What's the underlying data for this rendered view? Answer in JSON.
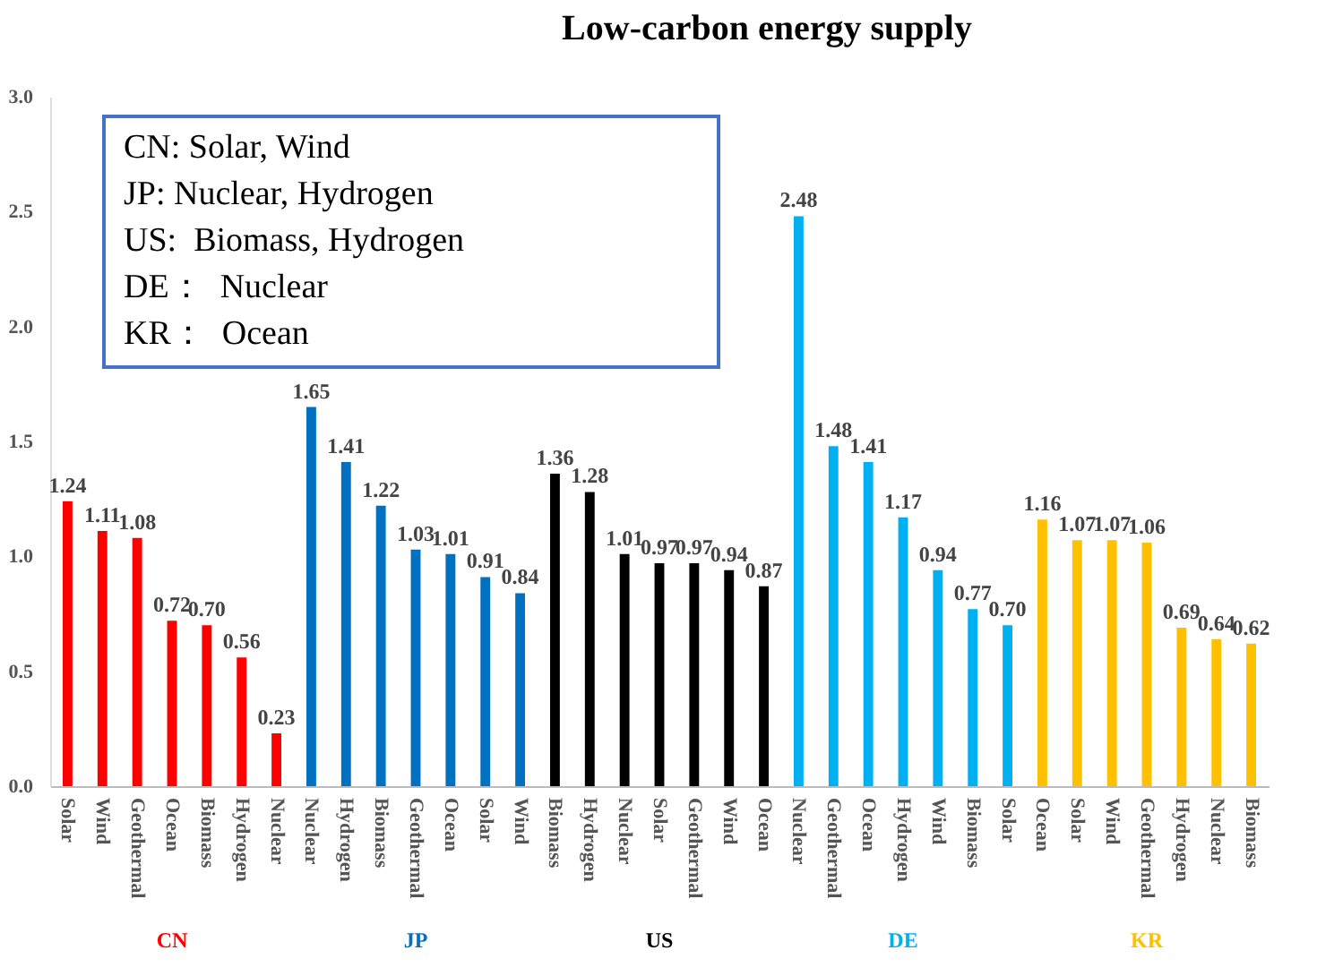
{
  "chart_data": {
    "type": "bar",
    "title": "Low-carbon energy supply",
    "categories": [
      "Solar",
      "Wind",
      "Geothermal",
      "Ocean",
      "Biomass",
      "Hydrogen",
      "Nuclear",
      "Nuclear",
      "Hydrogen",
      "Biomass",
      "Geothermal",
      "Ocean",
      "Solar",
      "Wind",
      "Biomass",
      "Hydrogen",
      "Nuclear",
      "Solar",
      "Geothermal",
      "Wind",
      "Ocean",
      "Nuclear",
      "Geothermal",
      "Ocean",
      "Hydrogen",
      "Wind",
      "Biomass",
      "Solar",
      "Ocean",
      "Solar",
      "Wind",
      "Geothermal",
      "Hydrogen",
      "Nuclear",
      "Biomass"
    ],
    "series": [
      {
        "name": "CN",
        "color": "#ff0000",
        "values": [
          1.24,
          1.11,
          1.08,
          0.72,
          0.7,
          0.56,
          0.23,
          null,
          null,
          null,
          null,
          null,
          null,
          null,
          null,
          null,
          null,
          null,
          null,
          null,
          null,
          null,
          null,
          null,
          null,
          null,
          null,
          null,
          null,
          null,
          null,
          null,
          null,
          null,
          null
        ],
        "value_labels": [
          "1.24",
          "1.11",
          "1.08",
          "0.72",
          "0.70",
          "0.56",
          "0.23",
          null,
          null,
          null,
          null,
          null,
          null,
          null,
          null,
          null,
          null,
          null,
          null,
          null,
          null,
          null,
          null,
          null,
          null,
          null,
          null,
          null,
          null,
          null,
          null,
          null,
          null,
          null,
          null
        ]
      },
      {
        "name": "JP",
        "color": "#0070c0",
        "values": [
          null,
          null,
          null,
          null,
          null,
          null,
          null,
          1.65,
          1.41,
          1.22,
          1.03,
          1.01,
          0.91,
          0.84,
          null,
          null,
          null,
          null,
          null,
          null,
          null,
          null,
          null,
          null,
          null,
          null,
          null,
          null,
          null,
          null,
          null,
          null,
          null,
          null,
          null
        ],
        "value_labels": [
          null,
          null,
          null,
          null,
          null,
          null,
          null,
          "1.65",
          "1.41",
          "1.22",
          "1.03",
          "1.01",
          "0.91",
          "0.84",
          null,
          null,
          null,
          null,
          null,
          null,
          null,
          null,
          null,
          null,
          null,
          null,
          null,
          null,
          null,
          null,
          null,
          null,
          null,
          null,
          null
        ]
      },
      {
        "name": "US",
        "color": "#000000",
        "values": [
          null,
          null,
          null,
          null,
          null,
          null,
          null,
          null,
          null,
          null,
          null,
          null,
          null,
          null,
          1.36,
          1.28,
          1.01,
          0.97,
          0.97,
          0.94,
          0.87,
          null,
          null,
          null,
          null,
          null,
          null,
          null,
          null,
          null,
          null,
          null,
          null,
          null,
          null
        ],
        "value_labels": [
          null,
          null,
          null,
          null,
          null,
          null,
          null,
          null,
          null,
          null,
          null,
          null,
          null,
          null,
          "1.36",
          "1.28",
          "1.01",
          "0.97",
          "0.97",
          "0.94",
          "0.87",
          null,
          null,
          null,
          null,
          null,
          null,
          null,
          null,
          null,
          null,
          null,
          null,
          null,
          null
        ]
      },
      {
        "name": "DE",
        "color": "#00b0f0",
        "values": [
          null,
          null,
          null,
          null,
          null,
          null,
          null,
          null,
          null,
          null,
          null,
          null,
          null,
          null,
          null,
          null,
          null,
          null,
          null,
          null,
          null,
          2.48,
          1.48,
          1.41,
          1.17,
          0.94,
          0.77,
          0.7,
          null,
          null,
          null,
          null,
          null,
          null,
          null
        ],
        "value_labels": [
          null,
          null,
          null,
          null,
          null,
          null,
          null,
          null,
          null,
          null,
          null,
          null,
          null,
          null,
          null,
          null,
          null,
          null,
          null,
          null,
          null,
          "2.48",
          "1.48",
          "1.41",
          "1.17",
          "0.94",
          "0.77",
          "0.70",
          null,
          null,
          null,
          null,
          null,
          null,
          null
        ]
      },
      {
        "name": "KR",
        "color": "#ffc000",
        "values": [
          null,
          null,
          null,
          null,
          null,
          null,
          null,
          null,
          null,
          null,
          null,
          null,
          null,
          null,
          null,
          null,
          null,
          null,
          null,
          null,
          null,
          null,
          null,
          null,
          null,
          null,
          null,
          null,
          1.16,
          1.07,
          1.07,
          1.06,
          0.69,
          0.64,
          0.62
        ],
        "value_labels": [
          null,
          null,
          null,
          null,
          null,
          null,
          null,
          null,
          null,
          null,
          null,
          null,
          null,
          null,
          null,
          null,
          null,
          null,
          null,
          null,
          null,
          null,
          null,
          null,
          null,
          null,
          null,
          null,
          "1.16",
          "1.07",
          "1.07",
          "1.06",
          "0.69",
          "0.64",
          "0.62"
        ]
      }
    ],
    "ylim": [
      0,
      3
    ],
    "yticks": [
      {
        "value": 0,
        "label": "0.0"
      },
      {
        "value": 0.5,
        "label": "0.5"
      },
      {
        "value": 1,
        "label": "1.0"
      },
      {
        "value": 1.5,
        "label": "1.5"
      },
      {
        "value": 2,
        "label": "2.0"
      },
      {
        "value": 2.5,
        "label": "2.5"
      },
      {
        "value": 3,
        "label": "3.0"
      }
    ],
    "grid": false,
    "legend": false,
    "annotations": [
      "CN: Solar, Wind",
      "JP: Nuclear, Hydrogen",
      "US:  Biomass, Hydrogen",
      "DE：  Nuclear",
      "KR：  Ocean"
    ]
  }
}
